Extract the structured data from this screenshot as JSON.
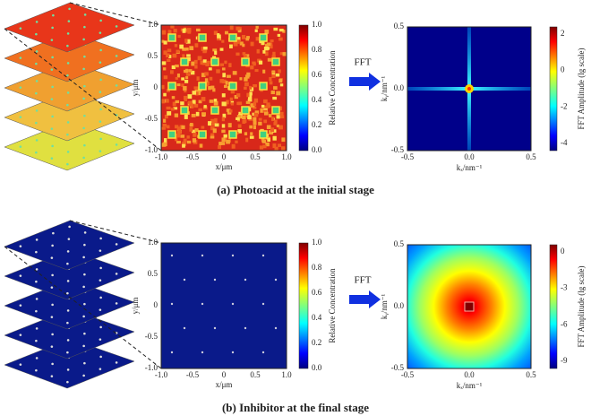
{
  "panels": [
    {
      "caption": "(a) Photoacid at the initial stage",
      "map": {
        "xticks": [
          "-1.0",
          "-0.5",
          "0",
          "0.5",
          "1.0"
        ],
        "yticks": [
          "1.0",
          "0.5",
          "0",
          "-0.5",
          "-1.0"
        ],
        "xlabel": "x/μm",
        "ylabel": "y/μm",
        "cbar_ticks": [
          "1.0",
          "0.8",
          "0.6",
          "0.4",
          "0.2",
          "0.0"
        ],
        "cbar_label": "Relative Concentration"
      },
      "arrow": "FFT",
      "fft": {
        "xticks": [
          "-0.5",
          "0.0",
          "0.5"
        ],
        "yticks": [
          "0.5",
          "0.0",
          "-0.5"
        ],
        "xlabel": "kₓ/nm⁻¹",
        "ylabel": "kᵧ/nm⁻¹",
        "cbar_ticks": [
          "2",
          "0",
          "-2",
          "-4"
        ],
        "cbar_label": "FFT Amplitude (lg scale)"
      }
    },
    {
      "caption": "(b) Inhibitor at the final stage",
      "map": {
        "xticks": [
          "-1.0",
          "-0.5",
          "0",
          "0.5",
          "1.0"
        ],
        "yticks": [
          "1.0",
          "0.5",
          "0",
          "-0.5",
          "-1.0"
        ],
        "xlabel": "x/μm",
        "ylabel": "y/μm",
        "cbar_ticks": [
          "1.0",
          "0.8",
          "0.6",
          "0.4",
          "0.2",
          "0.0"
        ],
        "cbar_label": "Relative Concentration"
      },
      "arrow": "FFT",
      "fft": {
        "xticks": [
          "-0.5",
          "0.0",
          "0.5"
        ],
        "yticks": [
          "0.5",
          "0.0",
          "-0.5"
        ],
        "xlabel": "kₓ/nm⁻¹",
        "ylabel": "kᵧ/nm⁻¹",
        "cbar_ticks": [
          "0",
          "-3",
          "-6",
          "-9"
        ],
        "cbar_label": "FFT Amplitude (lg scale)"
      }
    }
  ]
}
